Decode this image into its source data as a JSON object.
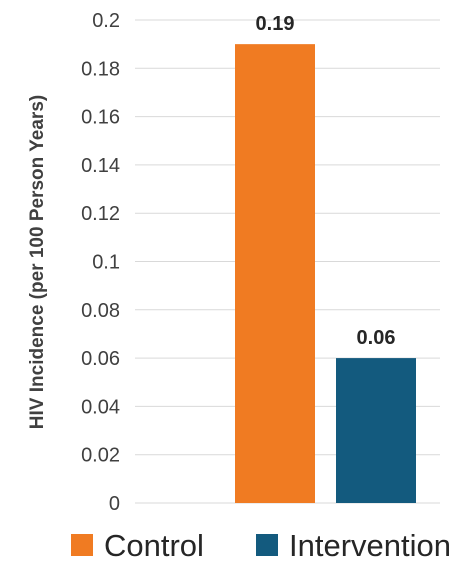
{
  "chart_data": {
    "type": "bar",
    "title": "",
    "xlabel": "",
    "ylabel": "HIV Incidence (per 100 Person Years)",
    "ylim": [
      0,
      0.2
    ],
    "ytick_values": [
      0,
      0.02,
      0.04,
      0.06,
      0.08,
      0.1,
      0.12,
      0.14,
      0.16,
      0.18,
      0.2
    ],
    "ytick_labels": [
      "0",
      "0.02",
      "0.04",
      "0.06",
      "0.08",
      "0.1",
      "0.12",
      "0.14",
      "0.16",
      "0.18",
      "0.2"
    ],
    "grid": true,
    "legend_position": "bottom",
    "series": [
      {
        "name": "Control",
        "value": 0.19,
        "label": "0.19",
        "color": "#F07B22"
      },
      {
        "name": "Intervention",
        "value": 0.06,
        "label": "0.06",
        "color": "#135A7E"
      }
    ]
  },
  "colors": {
    "gridline": "#D9D9D9",
    "text": "#404040"
  }
}
